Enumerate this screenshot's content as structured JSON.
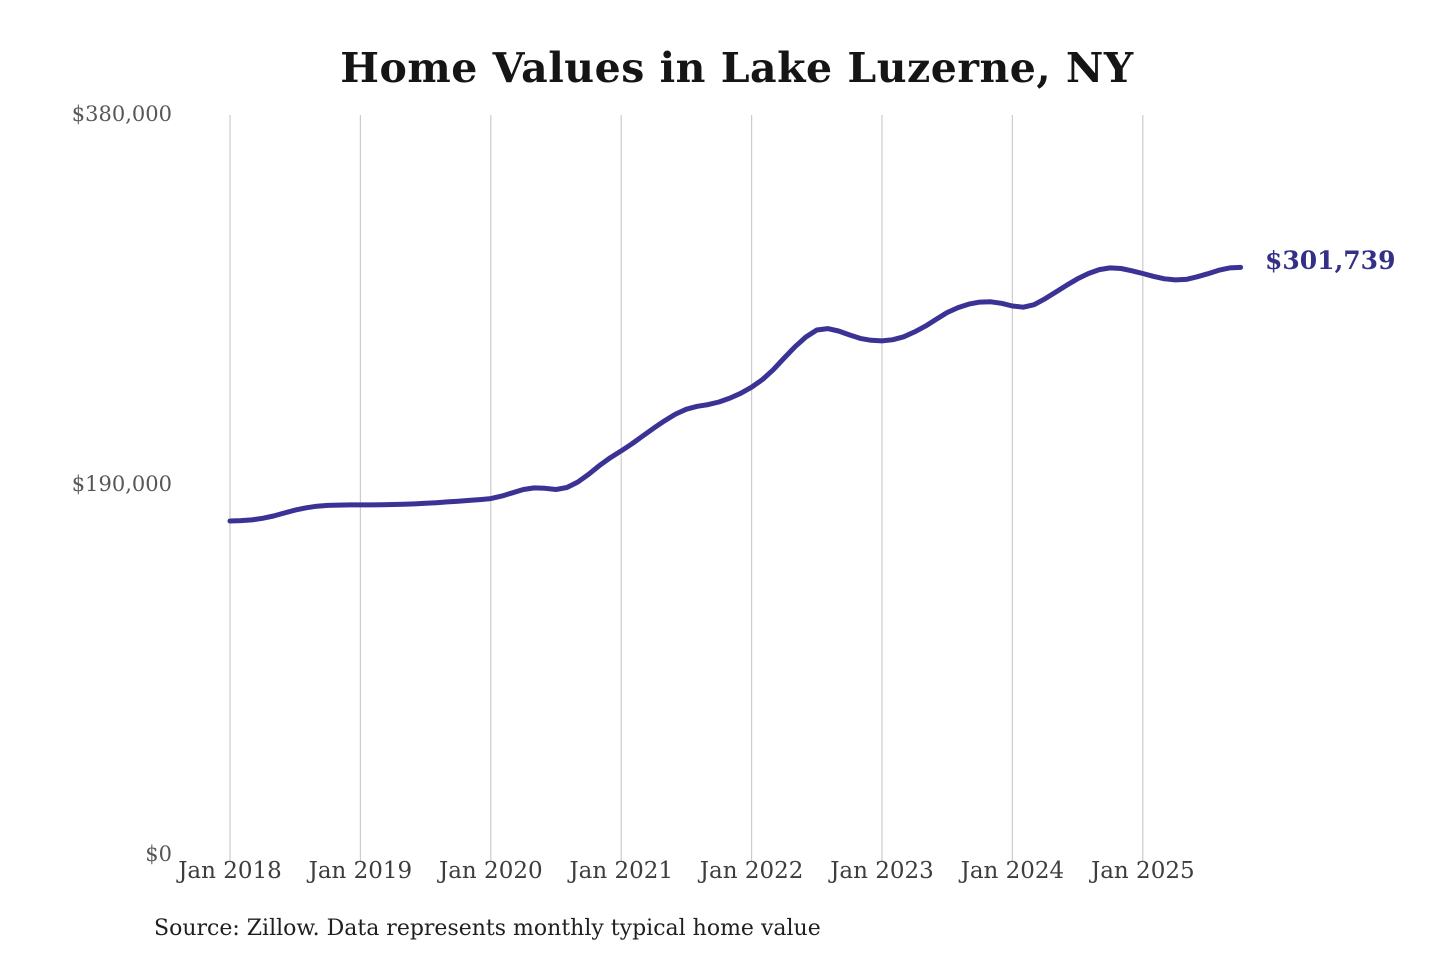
{
  "page": {
    "title": "Home Values in Lake Luzerne, NY",
    "latest_value_label": "$301,739",
    "source_note": "Source: Zillow. Data represents monthly typical home value"
  },
  "colors": {
    "line": "#3b3295",
    "latest_label": "#333086",
    "gridline": "#cccccc",
    "y_axis_text": "#575757",
    "x_axis_text": "#3d3d3d",
    "title_text": "#151515"
  },
  "chart_data": {
    "type": "line",
    "title": "Home Values in Lake Luzerne, NY",
    "xlabel": "",
    "ylabel": "",
    "ylim": [
      0,
      380000
    ],
    "grid": "vertical-only",
    "frequency": "monthly",
    "x_start": "Jan 2018",
    "x_end": "Oct 2025",
    "x_ticks": [
      "Jan 2018",
      "Jan 2019",
      "Jan 2020",
      "Jan 2021",
      "Jan 2022",
      "Jan 2023",
      "Jan 2024",
      "Jan 2025"
    ],
    "y_ticks": [
      {
        "label": "$380,000",
        "value": 380000
      },
      {
        "label": "$190,000",
        "value": 190000
      },
      {
        "label": "$0",
        "value": 0
      }
    ],
    "series": [
      {
        "name": "Typical home value",
        "values": [
          171500,
          171700,
          172100,
          172900,
          174100,
          175600,
          177100,
          178300,
          179100,
          179500,
          179700,
          179800,
          179800,
          179800,
          179900,
          180000,
          180100,
          180300,
          180600,
          180900,
          181300,
          181700,
          182100,
          182500,
          183000,
          184300,
          186000,
          187700,
          188500,
          188300,
          187700,
          188700,
          191500,
          195500,
          200000,
          204000,
          207500,
          211200,
          215200,
          219200,
          223000,
          226400,
          228900,
          230400,
          231300,
          232600,
          234600,
          237100,
          240200,
          244200,
          249200,
          255200,
          261000,
          266000,
          269600,
          270300,
          269100,
          267100,
          265300,
          264300,
          264000,
          264600,
          266100,
          268600,
          271600,
          275100,
          278600,
          281100,
          282900,
          283900,
          284100,
          283300,
          281900,
          281300,
          282600,
          285600,
          289100,
          292600,
          295900,
          298600,
          300600,
          301500,
          301200,
          300000,
          298600,
          297100,
          295900,
          295300,
          295600,
          296900,
          298500,
          300300,
          301500,
          301739
        ]
      }
    ],
    "annotations": [
      {
        "text": "$301,739",
        "x": "Oct 2025",
        "y": 301739
      }
    ]
  }
}
